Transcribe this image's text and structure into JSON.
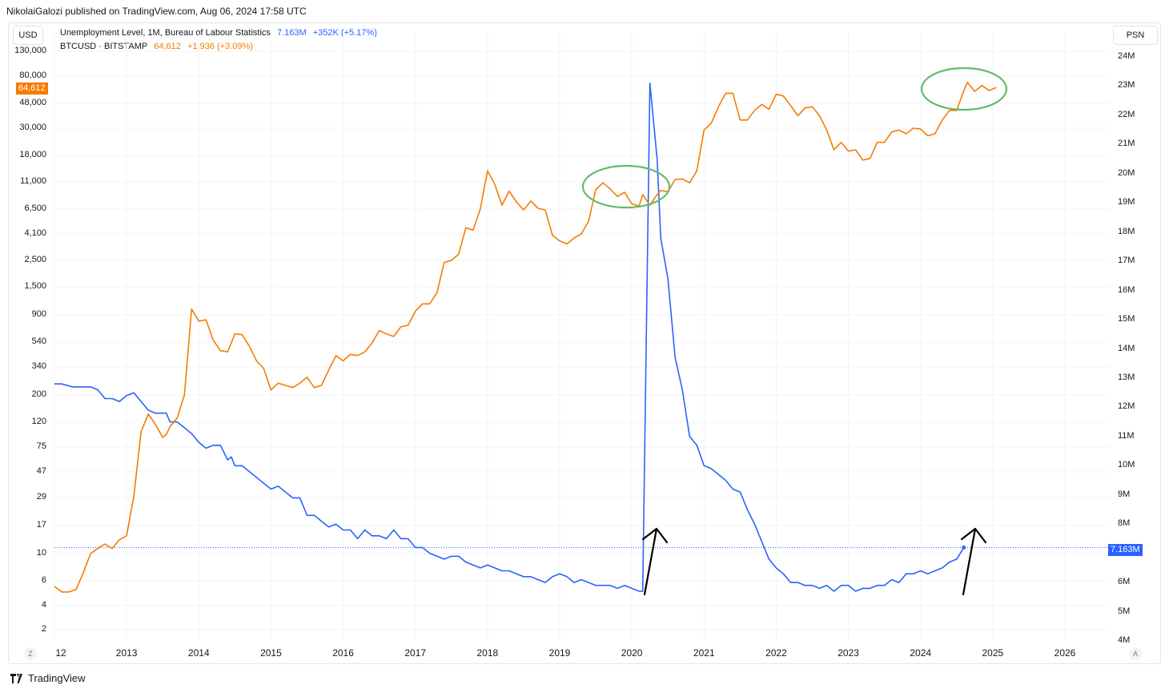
{
  "publisher_line": "NikolaiGalozi published on TradingView.com, Aug 06, 2024 17:58 UTC",
  "left_currency": "USD",
  "right_currency": "PSN",
  "legend": {
    "series1": {
      "name": "Unemployment Level, 1M, Bureau of Labour Statistics",
      "value": "7.163M",
      "change": "+352K (+5.17%)"
    },
    "series2": {
      "name": "BTCUSD · BITSTAMP",
      "value": "64,612",
      "change": "+1,936 (+3.09%)"
    }
  },
  "price_tags": {
    "btc": "64,612",
    "unemployment": "7.163M"
  },
  "corner_buttons": {
    "left": "Z",
    "right": "A"
  },
  "footer_brand": "TradingView",
  "colors": {
    "unemployment": "#2962ff",
    "btc": "#f57c00",
    "circle": "#66bb6a",
    "arrow": "#000000"
  },
  "chart_data": {
    "type": "line",
    "title": "",
    "left_axis": {
      "label": "USD",
      "scale": "log",
      "ticks": [
        "130,000",
        "80,000",
        "48,000",
        "30,000",
        "18,000",
        "11,000",
        "6,500",
        "4,100",
        "2,500",
        "1,500",
        "900",
        "540",
        "340",
        "200",
        "120",
        "75",
        "47",
        "29",
        "17",
        "10",
        "6",
        "4",
        "2"
      ]
    },
    "right_axis": {
      "label": "PSN",
      "scale": "linear",
      "ticks": [
        "24M",
        "23M",
        "22M",
        "21M",
        "20M",
        "19M",
        "18M",
        "17M",
        "16M",
        "15M",
        "14M",
        "13M",
        "12M",
        "11M",
        "10M",
        "9M",
        "8M",
        "7M",
        "6M",
        "5M",
        "4M"
      ]
    },
    "x_ticks": [
      "12",
      "2013",
      "2014",
      "2015",
      "2016",
      "2017",
      "2018",
      "2019",
      "2020",
      "2021",
      "2022",
      "2023",
      "2024",
      "2025",
      "2026"
    ],
    "grid": true,
    "series": [
      {
        "name": "Unemployment Level, 1M, Bureau of Labour Statistics",
        "axis": "right",
        "unit": "M",
        "points": [
          [
            2012.0,
            12.8
          ],
          [
            2012.1,
            12.8
          ],
          [
            2012.25,
            12.7
          ],
          [
            2012.4,
            12.7
          ],
          [
            2012.5,
            12.7
          ],
          [
            2012.6,
            12.6
          ],
          [
            2012.7,
            12.3
          ],
          [
            2012.8,
            12.3
          ],
          [
            2012.9,
            12.2
          ],
          [
            2013.0,
            12.4
          ],
          [
            2013.1,
            12.5
          ],
          [
            2013.2,
            12.2
          ],
          [
            2013.3,
            11.9
          ],
          [
            2013.4,
            11.8
          ],
          [
            2013.5,
            11.8
          ],
          [
            2013.55,
            11.8
          ],
          [
            2013.6,
            11.5
          ],
          [
            2013.7,
            11.5
          ],
          [
            2013.8,
            11.3
          ],
          [
            2013.9,
            11.1
          ],
          [
            2014.0,
            10.8
          ],
          [
            2014.1,
            10.6
          ],
          [
            2014.2,
            10.7
          ],
          [
            2014.3,
            10.7
          ],
          [
            2014.4,
            10.2
          ],
          [
            2014.45,
            10.3
          ],
          [
            2014.5,
            10.0
          ],
          [
            2014.6,
            10.0
          ],
          [
            2014.7,
            9.8
          ],
          [
            2014.8,
            9.6
          ],
          [
            2014.9,
            9.4
          ],
          [
            2015.0,
            9.2
          ],
          [
            2015.1,
            9.3
          ],
          [
            2015.2,
            9.1
          ],
          [
            2015.3,
            8.9
          ],
          [
            2015.4,
            8.9
          ],
          [
            2015.5,
            8.3
          ],
          [
            2015.6,
            8.3
          ],
          [
            2015.7,
            8.1
          ],
          [
            2015.8,
            7.9
          ],
          [
            2015.9,
            8.0
          ],
          [
            2016.0,
            7.8
          ],
          [
            2016.1,
            7.8
          ],
          [
            2016.2,
            7.5
          ],
          [
            2016.3,
            7.8
          ],
          [
            2016.4,
            7.6
          ],
          [
            2016.5,
            7.6
          ],
          [
            2016.6,
            7.5
          ],
          [
            2016.7,
            7.8
          ],
          [
            2016.8,
            7.5
          ],
          [
            2016.9,
            7.5
          ],
          [
            2017.0,
            7.2
          ],
          [
            2017.1,
            7.2
          ],
          [
            2017.2,
            7.0
          ],
          [
            2017.3,
            6.9
          ],
          [
            2017.4,
            6.8
          ],
          [
            2017.5,
            6.9
          ],
          [
            2017.6,
            6.9
          ],
          [
            2017.7,
            6.7
          ],
          [
            2017.8,
            6.6
          ],
          [
            2017.9,
            6.5
          ],
          [
            2018.0,
            6.6
          ],
          [
            2018.1,
            6.5
          ],
          [
            2018.2,
            6.4
          ],
          [
            2018.3,
            6.4
          ],
          [
            2018.4,
            6.3
          ],
          [
            2018.5,
            6.2
          ],
          [
            2018.6,
            6.2
          ],
          [
            2018.7,
            6.1
          ],
          [
            2018.8,
            6.0
          ],
          [
            2018.9,
            6.2
          ],
          [
            2019.0,
            6.3
          ],
          [
            2019.1,
            6.2
          ],
          [
            2019.2,
            6.0
          ],
          [
            2019.3,
            6.1
          ],
          [
            2019.4,
            6.0
          ],
          [
            2019.5,
            5.9
          ],
          [
            2019.6,
            5.9
          ],
          [
            2019.7,
            5.9
          ],
          [
            2019.8,
            5.8
          ],
          [
            2019.9,
            5.9
          ],
          [
            2020.0,
            5.8
          ],
          [
            2020.1,
            5.7
          ],
          [
            2020.15,
            5.7
          ],
          [
            2020.25,
            23.1
          ],
          [
            2020.35,
            20.5
          ],
          [
            2020.4,
            17.8
          ],
          [
            2020.5,
            16.4
          ],
          [
            2020.6,
            13.7
          ],
          [
            2020.7,
            12.6
          ],
          [
            2020.8,
            11.0
          ],
          [
            2020.9,
            10.7
          ],
          [
            2021.0,
            10.0
          ],
          [
            2021.1,
            9.9
          ],
          [
            2021.2,
            9.7
          ],
          [
            2021.3,
            9.5
          ],
          [
            2021.4,
            9.2
          ],
          [
            2021.5,
            9.1
          ],
          [
            2021.6,
            8.5
          ],
          [
            2021.7,
            8.0
          ],
          [
            2021.8,
            7.4
          ],
          [
            2021.9,
            6.8
          ],
          [
            2022.0,
            6.5
          ],
          [
            2022.1,
            6.3
          ],
          [
            2022.2,
            6.0
          ],
          [
            2022.3,
            6.0
          ],
          [
            2022.4,
            5.9
          ],
          [
            2022.5,
            5.9
          ],
          [
            2022.6,
            5.8
          ],
          [
            2022.7,
            5.9
          ],
          [
            2022.8,
            5.7
          ],
          [
            2022.9,
            5.9
          ],
          [
            2023.0,
            5.9
          ],
          [
            2023.1,
            5.7
          ],
          [
            2023.2,
            5.8
          ],
          [
            2023.3,
            5.8
          ],
          [
            2023.4,
            5.9
          ],
          [
            2023.5,
            5.9
          ],
          [
            2023.6,
            6.1
          ],
          [
            2023.7,
            6.0
          ],
          [
            2023.8,
            6.3
          ],
          [
            2023.9,
            6.3
          ],
          [
            2024.0,
            6.4
          ],
          [
            2024.1,
            6.3
          ],
          [
            2024.2,
            6.4
          ],
          [
            2024.3,
            6.5
          ],
          [
            2024.4,
            6.7
          ],
          [
            2024.5,
            6.8
          ],
          [
            2024.6,
            7.2
          ]
        ]
      },
      {
        "name": "BTCUSD · BITSTAMP",
        "axis": "left",
        "unit": "USD",
        "points": [
          [
            2012.0,
            5.5
          ],
          [
            2012.1,
            5.0
          ],
          [
            2012.2,
            5.0
          ],
          [
            2012.3,
            5.2
          ],
          [
            2012.4,
            7
          ],
          [
            2012.5,
            10
          ],
          [
            2012.6,
            11
          ],
          [
            2012.7,
            12
          ],
          [
            2012.8,
            11
          ],
          [
            2012.9,
            13
          ],
          [
            2013.0,
            14
          ],
          [
            2013.1,
            30
          ],
          [
            2013.2,
            100
          ],
          [
            2013.3,
            140
          ],
          [
            2013.4,
            115
          ],
          [
            2013.5,
            90
          ],
          [
            2013.55,
            95
          ],
          [
            2013.6,
            110
          ],
          [
            2013.7,
            130
          ],
          [
            2013.8,
            200
          ],
          [
            2013.9,
            1000
          ],
          [
            2014.0,
            800
          ],
          [
            2014.1,
            820
          ],
          [
            2014.2,
            560
          ],
          [
            2014.3,
            460
          ],
          [
            2014.4,
            450
          ],
          [
            2014.5,
            630
          ],
          [
            2014.6,
            620
          ],
          [
            2014.7,
            500
          ],
          [
            2014.8,
            380
          ],
          [
            2014.9,
            330
          ],
          [
            2015.0,
            220
          ],
          [
            2015.1,
            250
          ],
          [
            2015.2,
            240
          ],
          [
            2015.3,
            230
          ],
          [
            2015.4,
            250
          ],
          [
            2015.5,
            280
          ],
          [
            2015.6,
            230
          ],
          [
            2015.7,
            240
          ],
          [
            2015.8,
            320
          ],
          [
            2015.9,
            420
          ],
          [
            2016.0,
            380
          ],
          [
            2016.1,
            430
          ],
          [
            2016.2,
            420
          ],
          [
            2016.3,
            450
          ],
          [
            2016.4,
            530
          ],
          [
            2016.5,
            670
          ],
          [
            2016.6,
            630
          ],
          [
            2016.7,
            600
          ],
          [
            2016.8,
            720
          ],
          [
            2016.9,
            740
          ],
          [
            2017.0,
            960
          ],
          [
            2017.1,
            1100
          ],
          [
            2017.2,
            1100
          ],
          [
            2017.3,
            1350
          ],
          [
            2017.4,
            2400
          ],
          [
            2017.5,
            2500
          ],
          [
            2017.6,
            2800
          ],
          [
            2017.7,
            4600
          ],
          [
            2017.8,
            4400
          ],
          [
            2017.9,
            6500
          ],
          [
            2018.0,
            13500
          ],
          [
            2018.1,
            10500
          ],
          [
            2018.2,
            7000
          ],
          [
            2018.3,
            9200
          ],
          [
            2018.4,
            7500
          ],
          [
            2018.5,
            6400
          ],
          [
            2018.6,
            7600
          ],
          [
            2018.7,
            6600
          ],
          [
            2018.8,
            6400
          ],
          [
            2018.9,
            4000
          ],
          [
            2019.0,
            3600
          ],
          [
            2019.1,
            3400
          ],
          [
            2019.2,
            3800
          ],
          [
            2019.3,
            4100
          ],
          [
            2019.4,
            5200
          ],
          [
            2019.5,
            9500
          ],
          [
            2019.6,
            10800
          ],
          [
            2019.7,
            9600
          ],
          [
            2019.8,
            8300
          ],
          [
            2019.9,
            9000
          ],
          [
            2020.0,
            7200
          ],
          [
            2020.1,
            6900
          ],
          [
            2020.15,
            8600
          ],
          [
            2020.25,
            7000
          ],
          [
            2020.35,
            8600
          ],
          [
            2020.4,
            9300
          ],
          [
            2020.5,
            9100
          ],
          [
            2020.6,
            11500
          ],
          [
            2020.7,
            11600
          ],
          [
            2020.8,
            10800
          ],
          [
            2020.9,
            13500
          ],
          [
            2021.0,
            29000
          ],
          [
            2021.1,
            33000
          ],
          [
            2021.2,
            45000
          ],
          [
            2021.3,
            58000
          ],
          [
            2021.4,
            58000
          ],
          [
            2021.5,
            35000
          ],
          [
            2021.6,
            35000
          ],
          [
            2021.7,
            42000
          ],
          [
            2021.8,
            47000
          ],
          [
            2021.9,
            43000
          ],
          [
            2022.0,
            57000
          ],
          [
            2022.1,
            55000
          ],
          [
            2022.2,
            46000
          ],
          [
            2022.3,
            38000
          ],
          [
            2022.4,
            44000
          ],
          [
            2022.5,
            45000
          ],
          [
            2022.6,
            38000
          ],
          [
            2022.7,
            29000
          ],
          [
            2022.8,
            20000
          ],
          [
            2022.9,
            23000
          ],
          [
            2023.0,
            19500
          ],
          [
            2023.1,
            20000
          ],
          [
            2023.2,
            16500
          ],
          [
            2023.3,
            17000
          ],
          [
            2023.4,
            23000
          ],
          [
            2023.5,
            23000
          ],
          [
            2023.6,
            28000
          ],
          [
            2023.7,
            29000
          ],
          [
            2023.8,
            27000
          ],
          [
            2023.9,
            30000
          ],
          [
            2024.0,
            29500
          ],
          [
            2024.1,
            26000
          ],
          [
            2024.2,
            27000
          ],
          [
            2024.3,
            35000
          ],
          [
            2024.4,
            42000
          ],
          [
            2024.5,
            42000
          ],
          [
            2024.6,
            61000
          ],
          [
            2024.65,
            71000
          ],
          [
            2024.75,
            60000
          ],
          [
            2024.85,
            67000
          ],
          [
            2024.95,
            61000
          ],
          [
            2025.05,
            64600
          ]
        ]
      }
    ],
    "annotations": [
      {
        "type": "ellipse",
        "color": "#66bb6a",
        "around": "BTC 2019–2020 plateau"
      },
      {
        "type": "ellipse",
        "color": "#66bb6a",
        "around": "BTC mid-2024"
      },
      {
        "type": "arrow",
        "color": "#000000",
        "at": "2020 unemployment spike"
      },
      {
        "type": "arrow",
        "color": "#000000",
        "at": "2024 unemployment rise"
      }
    ]
  }
}
